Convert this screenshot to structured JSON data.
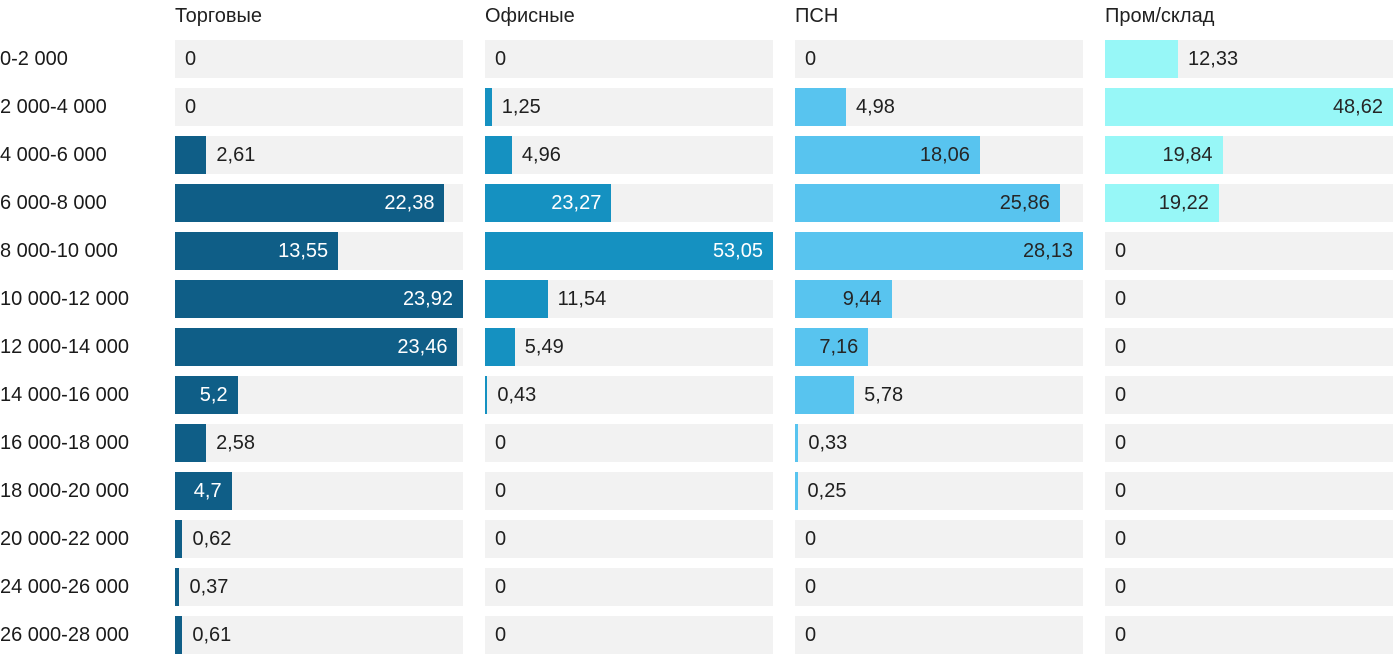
{
  "page": {
    "background": "#ffffff"
  },
  "colors": {
    "track": "#f2f2f2",
    "header_text": "#212121",
    "row_label_text": "#1a1a1a",
    "value_text_outside": "#1f1f1f"
  },
  "chart_data": {
    "type": "bar",
    "orientation": "horizontal",
    "decimal_separator": ",",
    "scaling": "each column scaled independently; column max value spans full track width",
    "grid": false,
    "legend": false,
    "categories": [
      "0-2 000",
      "2 000-4 000",
      "4 000-6 000",
      "6 000-8 000",
      "8 000-10 000",
      "10 000-12 000",
      "12 000-14 000",
      "14 000-16 000",
      "16 000-18 000",
      "18 000-20 000",
      "20 000-22 000",
      "24 000-26 000",
      "26 000-28 000"
    ],
    "series": [
      {
        "name": "Торговые",
        "color": "#0f5e87",
        "value_label_inside_color": "#ffffff",
        "values": [
          0,
          0,
          2.61,
          22.38,
          13.55,
          23.92,
          23.46,
          5.2,
          2.58,
          4.7,
          0.62,
          0.37,
          0.61
        ]
      },
      {
        "name": "Офисные",
        "color": "#1591c1",
        "value_label_inside_color": "#ffffff",
        "values": [
          0,
          1.25,
          4.96,
          23.27,
          53.05,
          11.54,
          5.49,
          0.43,
          0,
          0,
          0,
          0,
          0
        ]
      },
      {
        "name": "ПСН",
        "color": "#58c4ef",
        "value_label_inside_color": "#262626",
        "values": [
          0,
          4.98,
          18.06,
          25.86,
          28.13,
          9.44,
          7.16,
          5.78,
          0.33,
          0.25,
          0,
          0,
          0
        ]
      },
      {
        "name": "Пром/склад",
        "color": "#97f7f7",
        "value_label_inside_color": "#262626",
        "values": [
          12.33,
          48.62,
          19.84,
          19.22,
          0,
          0,
          0,
          0,
          0,
          0,
          0,
          0,
          0
        ]
      }
    ]
  }
}
